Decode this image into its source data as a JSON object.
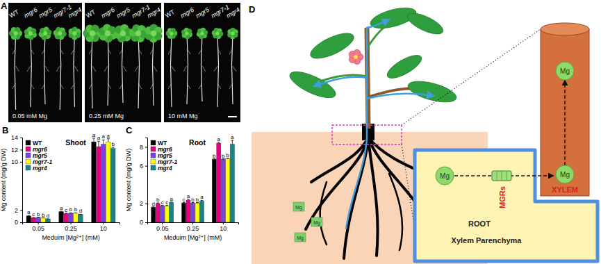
{
  "panel_a": {
    "label": "A",
    "genotypes": [
      "WT",
      "mgr6",
      "mgr5",
      "mgr7-1",
      "mgr4"
    ],
    "conditions": [
      "0.05 mM Mg",
      "0.25 mM Mg",
      "10 mM Mg"
    ]
  },
  "chart_data": [
    {
      "type": "bar",
      "panel_label": "B",
      "title": "Shoot",
      "x_label": "Meduim [Mg²⁺] (mM)",
      "y_label": "Mg content (mg/g DW)",
      "categories": [
        "0.05",
        "0.25",
        "10"
      ],
      "ylim": [
        0,
        14
      ],
      "yticks": [
        0,
        2,
        10,
        12,
        14
      ],
      "legend": "upper left",
      "series": [
        {
          "name": "WT",
          "color": "#000000",
          "values": [
            1.05,
            1.75,
            13.3
          ],
          "errors": [
            0.08,
            0.08,
            0.6
          ],
          "letters": [
            "a",
            "a",
            "a"
          ]
        },
        {
          "name": "mgr6",
          "color": "#e4007f",
          "values": [
            0.75,
            1.45,
            12.5
          ],
          "errors": [
            0.05,
            0.05,
            0.9
          ],
          "letters": [
            "c",
            "c",
            "a"
          ]
        },
        {
          "name": "mgr5",
          "color": "#7b3fe4",
          "values": [
            0.8,
            1.5,
            12.9
          ],
          "errors": [
            0.05,
            0.05,
            0.7
          ],
          "letters": [
            "b",
            "b",
            "a"
          ]
        },
        {
          "name": "mgr7-1",
          "color": "#ffff00",
          "values": [
            0.7,
            1.5,
            13.3
          ],
          "errors": [
            0.04,
            0.05,
            0.5
          ],
          "letters": [
            "b",
            "b",
            "a"
          ]
        },
        {
          "name": "mgr4",
          "color": "#178585",
          "values": [
            0.55,
            1.3,
            12.2
          ],
          "errors": [
            0.03,
            0.04,
            0.2
          ],
          "letters": [
            "d",
            "d",
            "b"
          ]
        }
      ]
    },
    {
      "type": "bar",
      "panel_label": "C",
      "title": "Root",
      "x_label": "Meduim [Mg²⁺] (mM)",
      "y_label": "Mg content (mg/g DW)",
      "categories": [
        "0.05",
        "0.25",
        "10"
      ],
      "ylim": [
        0,
        9
      ],
      "yticks": [
        0,
        2,
        6,
        8
      ],
      "legend": "upper left",
      "series": [
        {
          "name": "WT",
          "color": "#000000",
          "values": [
            1.6,
            2.05,
            6.7
          ],
          "errors": [
            0.05,
            0.05,
            0.05
          ],
          "letters": [
            "d",
            "c",
            "b"
          ]
        },
        {
          "name": "mgr6",
          "color": "#e4007f",
          "values": [
            2.0,
            2.35,
            8.4
          ],
          "errors": [
            0.06,
            0.08,
            0.1
          ],
          "letters": [
            "b",
            "a",
            "a"
          ]
        },
        {
          "name": "mgr5",
          "color": "#7b3fe4",
          "values": [
            1.75,
            2.05,
            6.7
          ],
          "errors": [
            0.05,
            0.05,
            0.05
          ],
          "letters": [
            "c",
            "b",
            "b"
          ]
        },
        {
          "name": "mgr7-1",
          "color": "#ffff00",
          "values": [
            1.75,
            2.05,
            6.75
          ],
          "errors": [
            0.05,
            0.05,
            0.05
          ],
          "letters": [
            "c",
            "b",
            "b"
          ]
        },
        {
          "name": "mgr4",
          "color": "#178585",
          "values": [
            2.1,
            2.25,
            8.3
          ],
          "errors": [
            0.06,
            0.08,
            0.4
          ],
          "letters": [
            "a",
            "a",
            "a"
          ]
        }
      ]
    }
  ],
  "panel_d": {
    "label": "D",
    "soil_ions": [
      "Mg",
      "Mg",
      "Mg"
    ],
    "cell_ion": "Mg",
    "xylem_ions": [
      "Mg",
      "Mg"
    ],
    "transporter": "MGRs",
    "xylem": "XYLEM",
    "root": "ROOT",
    "tissue": "Xylem Parenchyma"
  }
}
